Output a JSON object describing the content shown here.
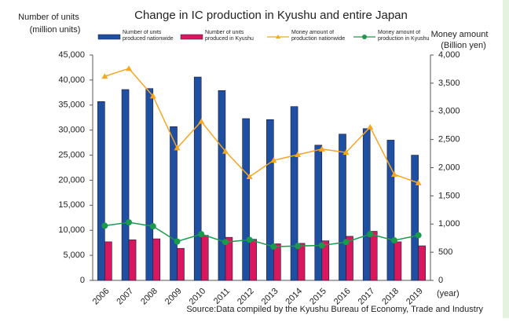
{
  "chart_data": {
    "type": "bar",
    "title": "Change in IC production in Kyushu and entire Japan",
    "y_label": [
      "Number of units",
      "(million units)"
    ],
    "y2_label": [
      "Money amount",
      "(Billion yen)"
    ],
    "x_unit": "(year)",
    "source": "Source:Data compiled by the Kyushu Bureau of Economy, Trade and Industry",
    "categories": [
      "2006",
      "2007",
      "2008",
      "2009",
      "2010",
      "2011",
      "2012",
      "2013",
      "2014",
      "2015",
      "2016",
      "2017",
      "2018",
      "2019"
    ],
    "series": [
      {
        "name": "Number of units produced nationwide",
        "type": "bar",
        "color": "#1f4fa0",
        "values": [
          35700,
          38100,
          38300,
          30700,
          40600,
          37900,
          32300,
          32100,
          34700,
          27000,
          29200,
          30300,
          28000,
          25000
        ]
      },
      {
        "name": "Number of units produced in Kyushu",
        "type": "bar",
        "color": "#d8175c",
        "values": [
          7700,
          8100,
          8300,
          6400,
          9000,
          8600,
          8200,
          7300,
          7400,
          7900,
          8800,
          9800,
          7700,
          6900
        ]
      },
      {
        "name": "Money amount of production nationwide",
        "type": "line",
        "axis": "y2",
        "color": "#f5a623",
        "marker": "triangle",
        "values": [
          3620,
          3760,
          3270,
          2350,
          2820,
          2290,
          1840,
          2130,
          2230,
          2330,
          2270,
          2720,
          1880,
          1730
        ]
      },
      {
        "name": "Money amount of production in Kyushu",
        "type": "line",
        "axis": "y2",
        "color": "#1a9a4c",
        "marker": "circle",
        "values": [
          970,
          1030,
          960,
          690,
          820,
          680,
          720,
          600,
          610,
          620,
          680,
          820,
          710,
          800
        ]
      }
    ],
    "ylim": [
      0,
      45000
    ],
    "yticks": [
      0,
      {
        "value": 5000,
        "label": "5,000"
      },
      {
        "value": 10000,
        "label": "10,000"
      },
      {
        "value": 15000,
        "label": "15,000"
      },
      {
        "value": 20000,
        "label": "20,000"
      },
      {
        "value": 25000,
        "label": "25,000"
      },
      {
        "value": 30000,
        "label": "30,000"
      },
      {
        "value": 35000,
        "label": "35,000"
      },
      {
        "value": 40000,
        "label": "40,000"
      },
      {
        "value": 45000,
        "label": "45,000"
      }
    ],
    "y2lim": [
      0,
      4000
    ],
    "y2ticks": [
      0,
      500,
      {
        "value": 1000,
        "label": "1,000"
      },
      {
        "value": 1500,
        "label": "1,500"
      },
      {
        "value": 2000,
        "label": "2,000"
      },
      {
        "value": 2500,
        "label": "2,500"
      },
      {
        "value": 3000,
        "label": "3,000"
      },
      {
        "value": 3500,
        "label": "3,500"
      },
      {
        "value": 4000,
        "label": "4,000"
      }
    ],
    "grid": false
  }
}
